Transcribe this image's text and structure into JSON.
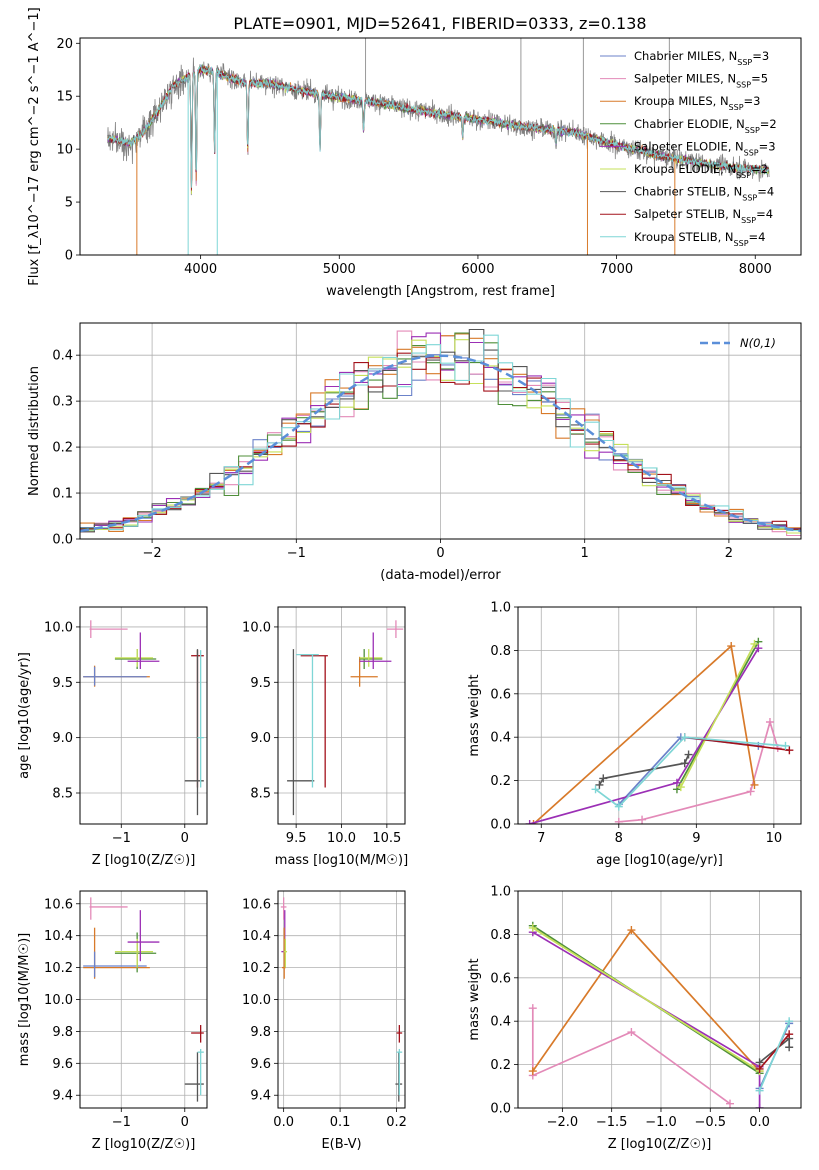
{
  "title": "PLATE=0901, MJD=52641, FIBERID=0333, z=0.138",
  "colors": {
    "chabrier_miles": "#6b82c9",
    "salpeter_miles": "#e38ab8",
    "kroupa_miles": "#d87a2a",
    "chabrier_elodie": "#4f8f3a",
    "salpeter_elodie": "#9b2fb5",
    "kroupa_elodie": "#c6e05a",
    "chabrier_stelib": "#555555",
    "salpeter_stelib": "#a3121b",
    "kroupa_stelib": "#7fd6d6",
    "data": "#808080",
    "normal": "#5b8fd9"
  },
  "chart_data": [
    {
      "type": "line",
      "id": "spectrum",
      "xlabel": "wavelength [Angstrom, rest frame]",
      "ylabel": "Flux [f_λ10^−17 erg cm^−2 s^−1 A^−1]",
      "xlim": [
        3130,
        8330
      ],
      "ylim": [
        0,
        20.5
      ],
      "xticks": [
        "4000",
        "5000",
        "6000",
        "7000",
        "8000"
      ],
      "yticks": [
        "0",
        "5",
        "10",
        "15",
        "20"
      ],
      "legend_position": "top-right",
      "legend": [
        {
          "label": "Chabrier MILES, N",
          "sub": "SSP",
          "suffix": "=3",
          "color_key": "chabrier_miles"
        },
        {
          "label": "Salpeter MILES, N",
          "sub": "SSP",
          "suffix": "=5",
          "color_key": "salpeter_miles"
        },
        {
          "label": "Kroupa MILES, N",
          "sub": "SSP",
          "suffix": "=3",
          "color_key": "kroupa_miles"
        },
        {
          "label": "Chabrier ELODIE, N",
          "sub": "SSP",
          "suffix": "=2",
          "color_key": "chabrier_elodie"
        },
        {
          "label": "Salpeter ELODIE, N",
          "sub": "SSP",
          "suffix": "=3",
          "color_key": "salpeter_elodie"
        },
        {
          "label": "Kroupa ELODIE, N",
          "sub": "SSP",
          "suffix": "=2",
          "color_key": "kroupa_elodie"
        },
        {
          "label": "Chabrier STELIB, N",
          "sub": "SSP",
          "suffix": "=4",
          "color_key": "chabrier_stelib"
        },
        {
          "label": "Salpeter STELIB, N",
          "sub": "SSP",
          "suffix": "=4",
          "color_key": "salpeter_stelib"
        },
        {
          "label": "Kroupa STELIB, N",
          "sub": "SSP",
          "suffix": "=4",
          "color_key": "kroupa_stelib"
        }
      ],
      "continuum": [
        [
          3330,
          11.0
        ],
        [
          3500,
          10.6
        ],
        [
          3600,
          11.8
        ],
        [
          3700,
          13.8
        ],
        [
          3800,
          16.0
        ],
        [
          3900,
          16.8
        ],
        [
          4000,
          17.6
        ],
        [
          4100,
          17.3
        ],
        [
          4300,
          16.3
        ],
        [
          4500,
          16.2
        ],
        [
          4700,
          15.6
        ],
        [
          4900,
          15.1
        ],
        [
          5100,
          14.7
        ],
        [
          5300,
          14.4
        ],
        [
          5500,
          13.8
        ],
        [
          5800,
          13.2
        ],
        [
          6100,
          12.6
        ],
        [
          6400,
          12.0
        ],
        [
          6700,
          11.6
        ],
        [
          7000,
          10.4
        ],
        [
          7300,
          9.4
        ],
        [
          7600,
          8.7
        ],
        [
          7900,
          8.2
        ],
        [
          8100,
          8.0
        ]
      ],
      "data_range": [
        3330,
        8100
      ]
    },
    {
      "type": "bar",
      "id": "residuals",
      "xlabel": "(data-model)/error",
      "ylabel": "Normed distribution",
      "xlim": [
        -2.5,
        2.5
      ],
      "ylim": [
        0,
        0.47
      ],
      "xticks": [
        "−2",
        "−1",
        "0",
        "1",
        "2"
      ],
      "yticks": [
        "0.0",
        "0.1",
        "0.2",
        "0.3",
        "0.4"
      ],
      "legend_position": "top-right",
      "legend_label": "N(0,1)",
      "bin_width": 0.1
    },
    {
      "type": "scatter",
      "id": "age_vs_Z",
      "xlabel": "Z [log10(Z/Z☉)]",
      "ylabel": "age  [log10(age/yr)]",
      "xlim": [
        -1.65,
        0.35
      ],
      "ylim": [
        8.22,
        10.18
      ],
      "xticks": [
        "−1",
        "0"
      ],
      "yticks": [
        "8.5",
        "9.0",
        "9.5",
        "10.0"
      ]
    },
    {
      "type": "scatter",
      "id": "age_vs_mass",
      "xlabel": "mass [log10(M/M☉)]",
      "ylabel": "",
      "xlim": [
        9.3,
        10.7
      ],
      "ylim": [
        8.22,
        10.18
      ],
      "xticks": [
        "9.5",
        "10.0",
        "10.5"
      ],
      "yticks": [
        "8.5",
        "9.0",
        "9.5",
        "10.0"
      ]
    },
    {
      "type": "line",
      "id": "weight_vs_age",
      "xlabel": "age  [log10(age/yr)]",
      "ylabel": "mass weight",
      "xlim": [
        6.7,
        10.35
      ],
      "ylim": [
        0,
        1.0
      ],
      "xticks": [
        "7",
        "8",
        "9",
        "10"
      ],
      "yticks": [
        "0.0",
        "0.2",
        "0.4",
        "0.6",
        "0.8",
        "1.0"
      ],
      "series": [
        {
          "color_key": "chabrier_miles",
          "x": [
            8.0,
            8.8,
            9.8
          ],
          "y": [
            0.09,
            0.4,
            0.36
          ]
        },
        {
          "color_key": "salpeter_miles",
          "x": [
            8.0,
            8.3,
            9.7,
            9.95,
            10.05
          ],
          "y": [
            0.01,
            0.02,
            0.15,
            0.47,
            0.35
          ]
        },
        {
          "color_key": "kroupa_miles",
          "x": [
            6.9,
            9.45,
            9.75
          ],
          "y": [
            0.0,
            0.82,
            0.18
          ]
        },
        {
          "color_key": "chabrier_elodie",
          "x": [
            8.75,
            9.8
          ],
          "y": [
            0.16,
            0.84
          ]
        },
        {
          "color_key": "salpeter_elodie",
          "x": [
            6.85,
            8.75,
            9.8
          ],
          "y": [
            0.0,
            0.19,
            0.81
          ]
        },
        {
          "color_key": "kroupa_elodie",
          "x": [
            8.8,
            9.75
          ],
          "y": [
            0.17,
            0.83
          ]
        },
        {
          "color_key": "chabrier_stelib",
          "x": [
            7.75,
            7.8,
            8.85,
            8.9
          ],
          "y": [
            0.18,
            0.21,
            0.28,
            0.32
          ]
        },
        {
          "color_key": "salpeter_stelib",
          "x": [
            8.85,
            10.2
          ],
          "y": [
            0.4,
            0.34
          ]
        },
        {
          "color_key": "kroupa_stelib",
          "x": [
            7.7,
            8.0,
            8.85,
            10.15
          ],
          "y": [
            0.16,
            0.08,
            0.4,
            0.36
          ]
        }
      ]
    },
    {
      "type": "scatter",
      "id": "mass_vs_Z",
      "xlabel": "Z [log10(Z/Z☉)]",
      "ylabel": "mass [log10(M/M☉)]",
      "xlim": [
        -1.65,
        0.35
      ],
      "ylim": [
        9.32,
        10.68
      ],
      "xticks": [
        "−1",
        "0"
      ],
      "yticks": [
        "9.4",
        "9.6",
        "9.8",
        "10.0",
        "10.2",
        "10.4",
        "10.6"
      ]
    },
    {
      "type": "scatter",
      "id": "mass_vs_ebv",
      "xlabel": "E(B-V)",
      "ylabel": "",
      "xlim": [
        -0.01,
        0.215
      ],
      "ylim": [
        9.32,
        10.68
      ],
      "xticks": [
        "0.0",
        "0.1",
        "0.2"
      ],
      "yticks": [
        "9.4",
        "9.6",
        "9.8",
        "10.0",
        "10.2",
        "10.4",
        "10.6"
      ]
    },
    {
      "type": "line",
      "id": "weight_vs_Z",
      "xlabel": "Z [log10(Z/Z☉)]",
      "ylabel": "mass weight",
      "xlim": [
        -2.45,
        0.42
      ],
      "ylim": [
        0,
        1.0
      ],
      "xticks": [
        "−2.0",
        "−1.5",
        "−1.0",
        "−0.5",
        "0.0"
      ],
      "yticks": [
        "0.0",
        "0.2",
        "0.4",
        "0.6",
        "0.8",
        "1.0"
      ],
      "series": [
        {
          "color_key": "chabrier_miles",
          "x": [
            0.0,
            0.3
          ],
          "y": [
            0.09,
            0.39
          ]
        },
        {
          "color_key": "salpeter_miles",
          "x": [
            -2.3,
            -2.3,
            -1.3,
            -0.3
          ],
          "y": [
            0.46,
            0.15,
            0.35,
            0.02
          ]
        },
        {
          "color_key": "kroupa_miles",
          "x": [
            -2.3,
            -1.3,
            0.0
          ],
          "y": [
            0.17,
            0.82,
            0.17
          ]
        },
        {
          "color_key": "chabrier_elodie",
          "x": [
            -2.3,
            0.0
          ],
          "y": [
            0.84,
            0.16
          ]
        },
        {
          "color_key": "salpeter_elodie",
          "x": [
            -2.3,
            0.0,
            0.0
          ],
          "y": [
            0.81,
            0.19,
            0.0
          ]
        },
        {
          "color_key": "kroupa_elodie",
          "x": [
            -2.3,
            0.0
          ],
          "y": [
            0.83,
            0.17
          ]
        },
        {
          "color_key": "chabrier_stelib",
          "x": [
            0.0,
            0.3,
            0.3
          ],
          "y": [
            0.21,
            0.32,
            0.28
          ]
        },
        {
          "color_key": "salpeter_stelib",
          "x": [
            0.0,
            0.3
          ],
          "y": [
            0.18,
            0.34
          ]
        },
        {
          "color_key": "kroupa_stelib",
          "x": [
            0.0,
            0.3
          ],
          "y": [
            0.08,
            0.4
          ]
        }
      ]
    }
  ]
}
